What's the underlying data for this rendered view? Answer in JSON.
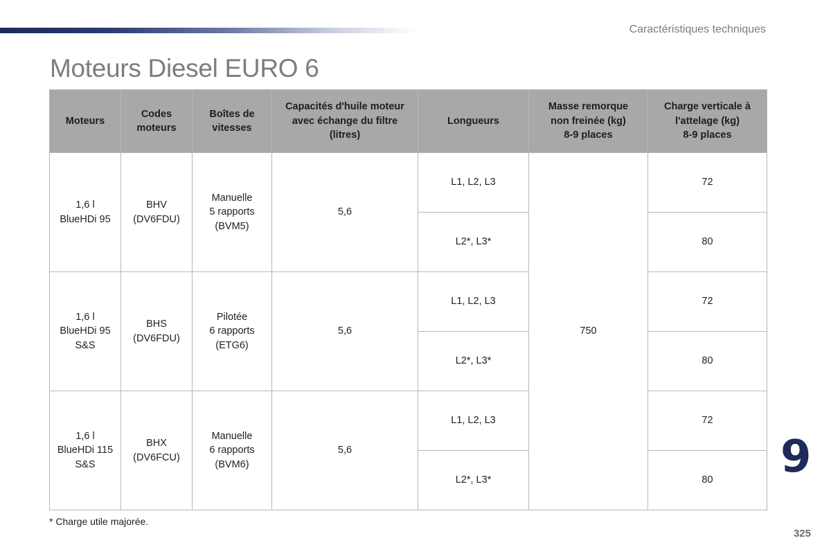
{
  "header": {
    "section_title": "Caractéristiques techniques",
    "page_title": "Moteurs Diesel EURO 6"
  },
  "table": {
    "columns": [
      "Moteurs",
      "Codes\nmoteurs",
      "Boîtes de\nvitesses",
      "Capacités d'huile moteur\navec échange du filtre\n(litres)",
      "Longueurs",
      "Masse remorque\nnon freinée (kg)\n8-9 places",
      "Charge verticale à\nl'attelage (kg)\n8-9 places"
    ],
    "masse_remorque": "750",
    "groups": [
      {
        "moteur": "1,6 l\nBlueHDi 95",
        "code": "BHV\n(DV6FDU)",
        "boite": "Manuelle\n5 rapports\n(BVM5)",
        "huile": "5,6",
        "rows": [
          {
            "longueurs": "L1, L2, L3",
            "charge": "72"
          },
          {
            "longueurs": "L2*, L3*",
            "charge": "80"
          }
        ]
      },
      {
        "moteur": "1,6 l\nBlueHDi 95\nS&S",
        "code": "BHS\n(DV6FDU)",
        "boite": "Pilotée\n6 rapports\n(ETG6)",
        "huile": "5,6",
        "rows": [
          {
            "longueurs": "L1, L2, L3",
            "charge": "72"
          },
          {
            "longueurs": "L2*, L3*",
            "charge": "80"
          }
        ]
      },
      {
        "moteur": "1,6 l\nBlueHDi 115\nS&S",
        "code": "BHX\n(DV6FCU)",
        "boite": "Manuelle\n6 rapports\n(BVM6)",
        "huile": "5,6",
        "rows": [
          {
            "longueurs": "L1, L2, L3",
            "charge": "72"
          },
          {
            "longueurs": "L2*, L3*",
            "charge": "80"
          }
        ]
      }
    ]
  },
  "footnote": "* Charge utile majorée.",
  "chapter_number": "9",
  "page_number": "325"
}
